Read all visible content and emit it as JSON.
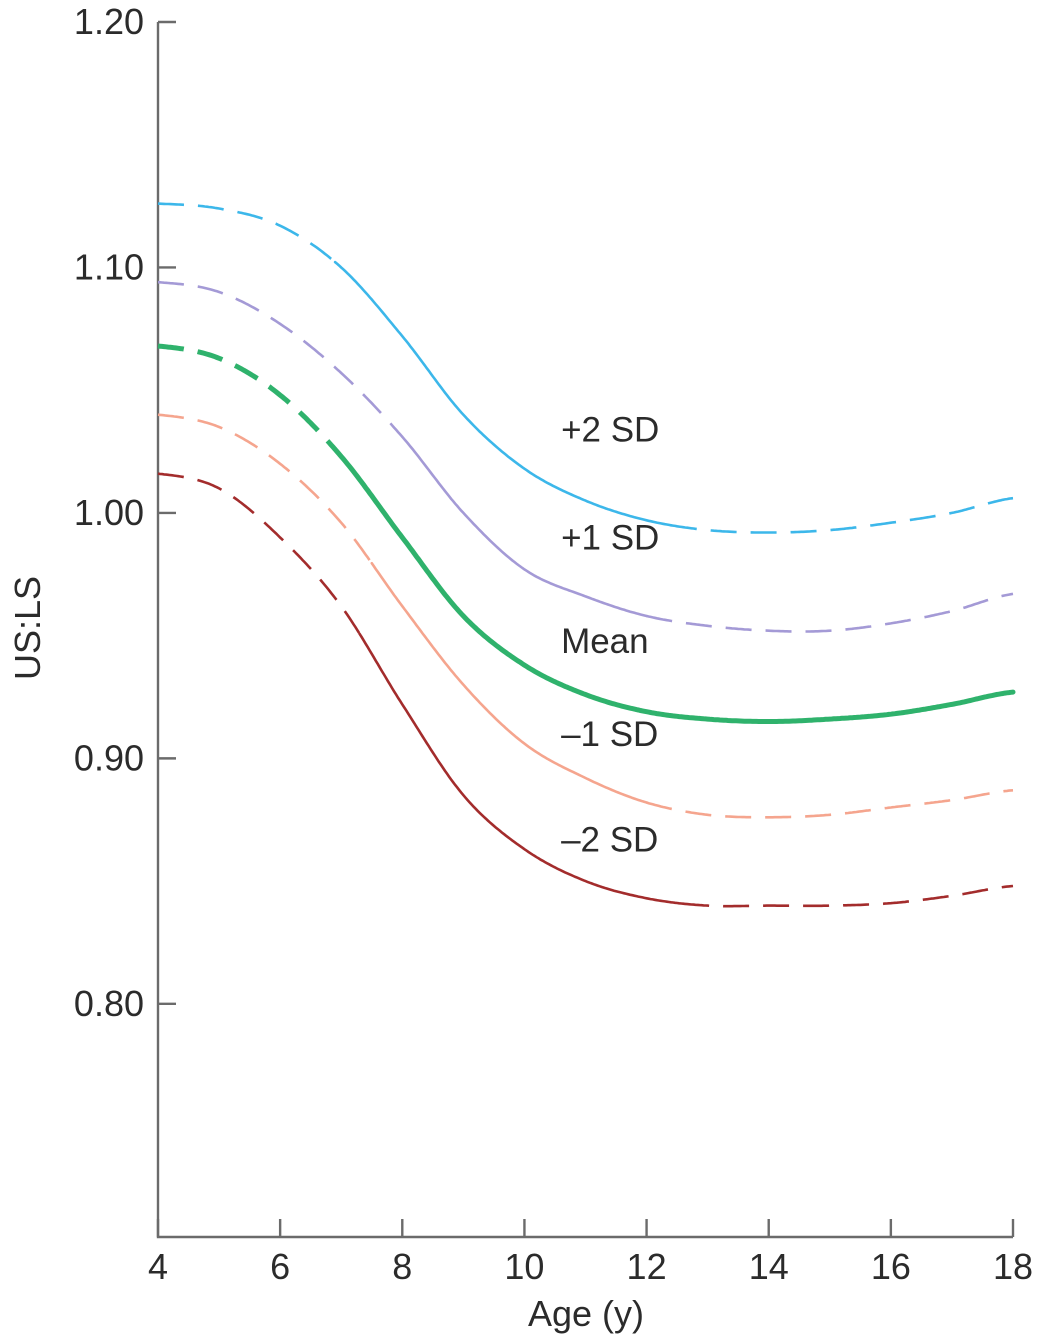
{
  "chart_data": {
    "type": "line",
    "title": "",
    "xlabel": "Age (y)",
    "ylabel": "US:LS",
    "xlim": [
      4,
      18
    ],
    "ylim": [
      0.705,
      1.2
    ],
    "xticks": [
      4,
      6,
      8,
      10,
      12,
      14,
      16,
      18
    ],
    "xtick_labels": [
      "4",
      "6",
      "8",
      "10",
      "12",
      "14",
      "16",
      "18"
    ],
    "yticks": [
      1.2,
      1.1,
      1.0,
      0.9,
      0.8
    ],
    "ytick_labels": [
      "1.20",
      "1.10",
      "1.00",
      "0.90",
      "0.80"
    ],
    "grid": false,
    "legend": "none",
    "x": [
      4,
      5,
      6,
      7,
      8,
      9,
      10,
      11,
      12,
      13,
      14,
      15,
      16,
      17,
      18
    ],
    "series": [
      {
        "name": "+2 SD",
        "color": "#3cb7ea",
        "values": [
          1.126,
          1.124,
          1.117,
          1.1,
          1.072,
          1.04,
          1.018,
          1.005,
          0.997,
          0.993,
          0.992,
          0.993,
          0.996,
          1.0,
          1.006
        ],
        "solid_range": [
          6.9,
          12.4
        ]
      },
      {
        "name": "+1 SD",
        "color": "#a49ad6",
        "values": [
          1.094,
          1.09,
          1.077,
          1.057,
          1.031,
          1.0,
          0.977,
          0.966,
          0.958,
          0.954,
          0.952,
          0.952,
          0.955,
          0.96,
          0.967
        ],
        "solid_range": [
          8.0,
          12.0
        ]
      },
      {
        "name": "Mean",
        "color": "#2fb26c",
        "values": [
          1.068,
          1.063,
          1.048,
          1.023,
          0.99,
          0.958,
          0.938,
          0.926,
          0.919,
          0.916,
          0.915,
          0.916,
          0.918,
          0.922,
          0.927
        ],
        "solid_range": [
          6.9,
          18.0
        ]
      },
      {
        "name": "–1 SD",
        "color": "#f5a58e",
        "values": [
          1.04,
          1.035,
          1.02,
          0.996,
          0.962,
          0.93,
          0.906,
          0.892,
          0.882,
          0.877,
          0.876,
          0.877,
          0.88,
          0.883,
          0.887
        ],
        "solid_range": [
          7.5,
          12.0
        ]
      },
      {
        "name": "–2 SD",
        "color": "#a32c2c",
        "values": [
          1.016,
          1.01,
          0.99,
          0.962,
          0.922,
          0.885,
          0.863,
          0.85,
          0.843,
          0.84,
          0.84,
          0.84,
          0.841,
          0.844,
          0.848
        ],
        "solid_range": [
          7.3,
          12.6
        ]
      }
    ],
    "annotations": [
      {
        "text": "+2 SD",
        "x": 10.6,
        "y": 1.029
      },
      {
        "text": "+1 SD",
        "x": 10.6,
        "y": 0.985
      },
      {
        "text": "Mean",
        "x": 10.6,
        "y": 0.943
      },
      {
        "text": "–1 SD",
        "x": 10.6,
        "y": 0.905
      },
      {
        "text": "–2 SD",
        "x": 10.6,
        "y": 0.862
      }
    ]
  }
}
